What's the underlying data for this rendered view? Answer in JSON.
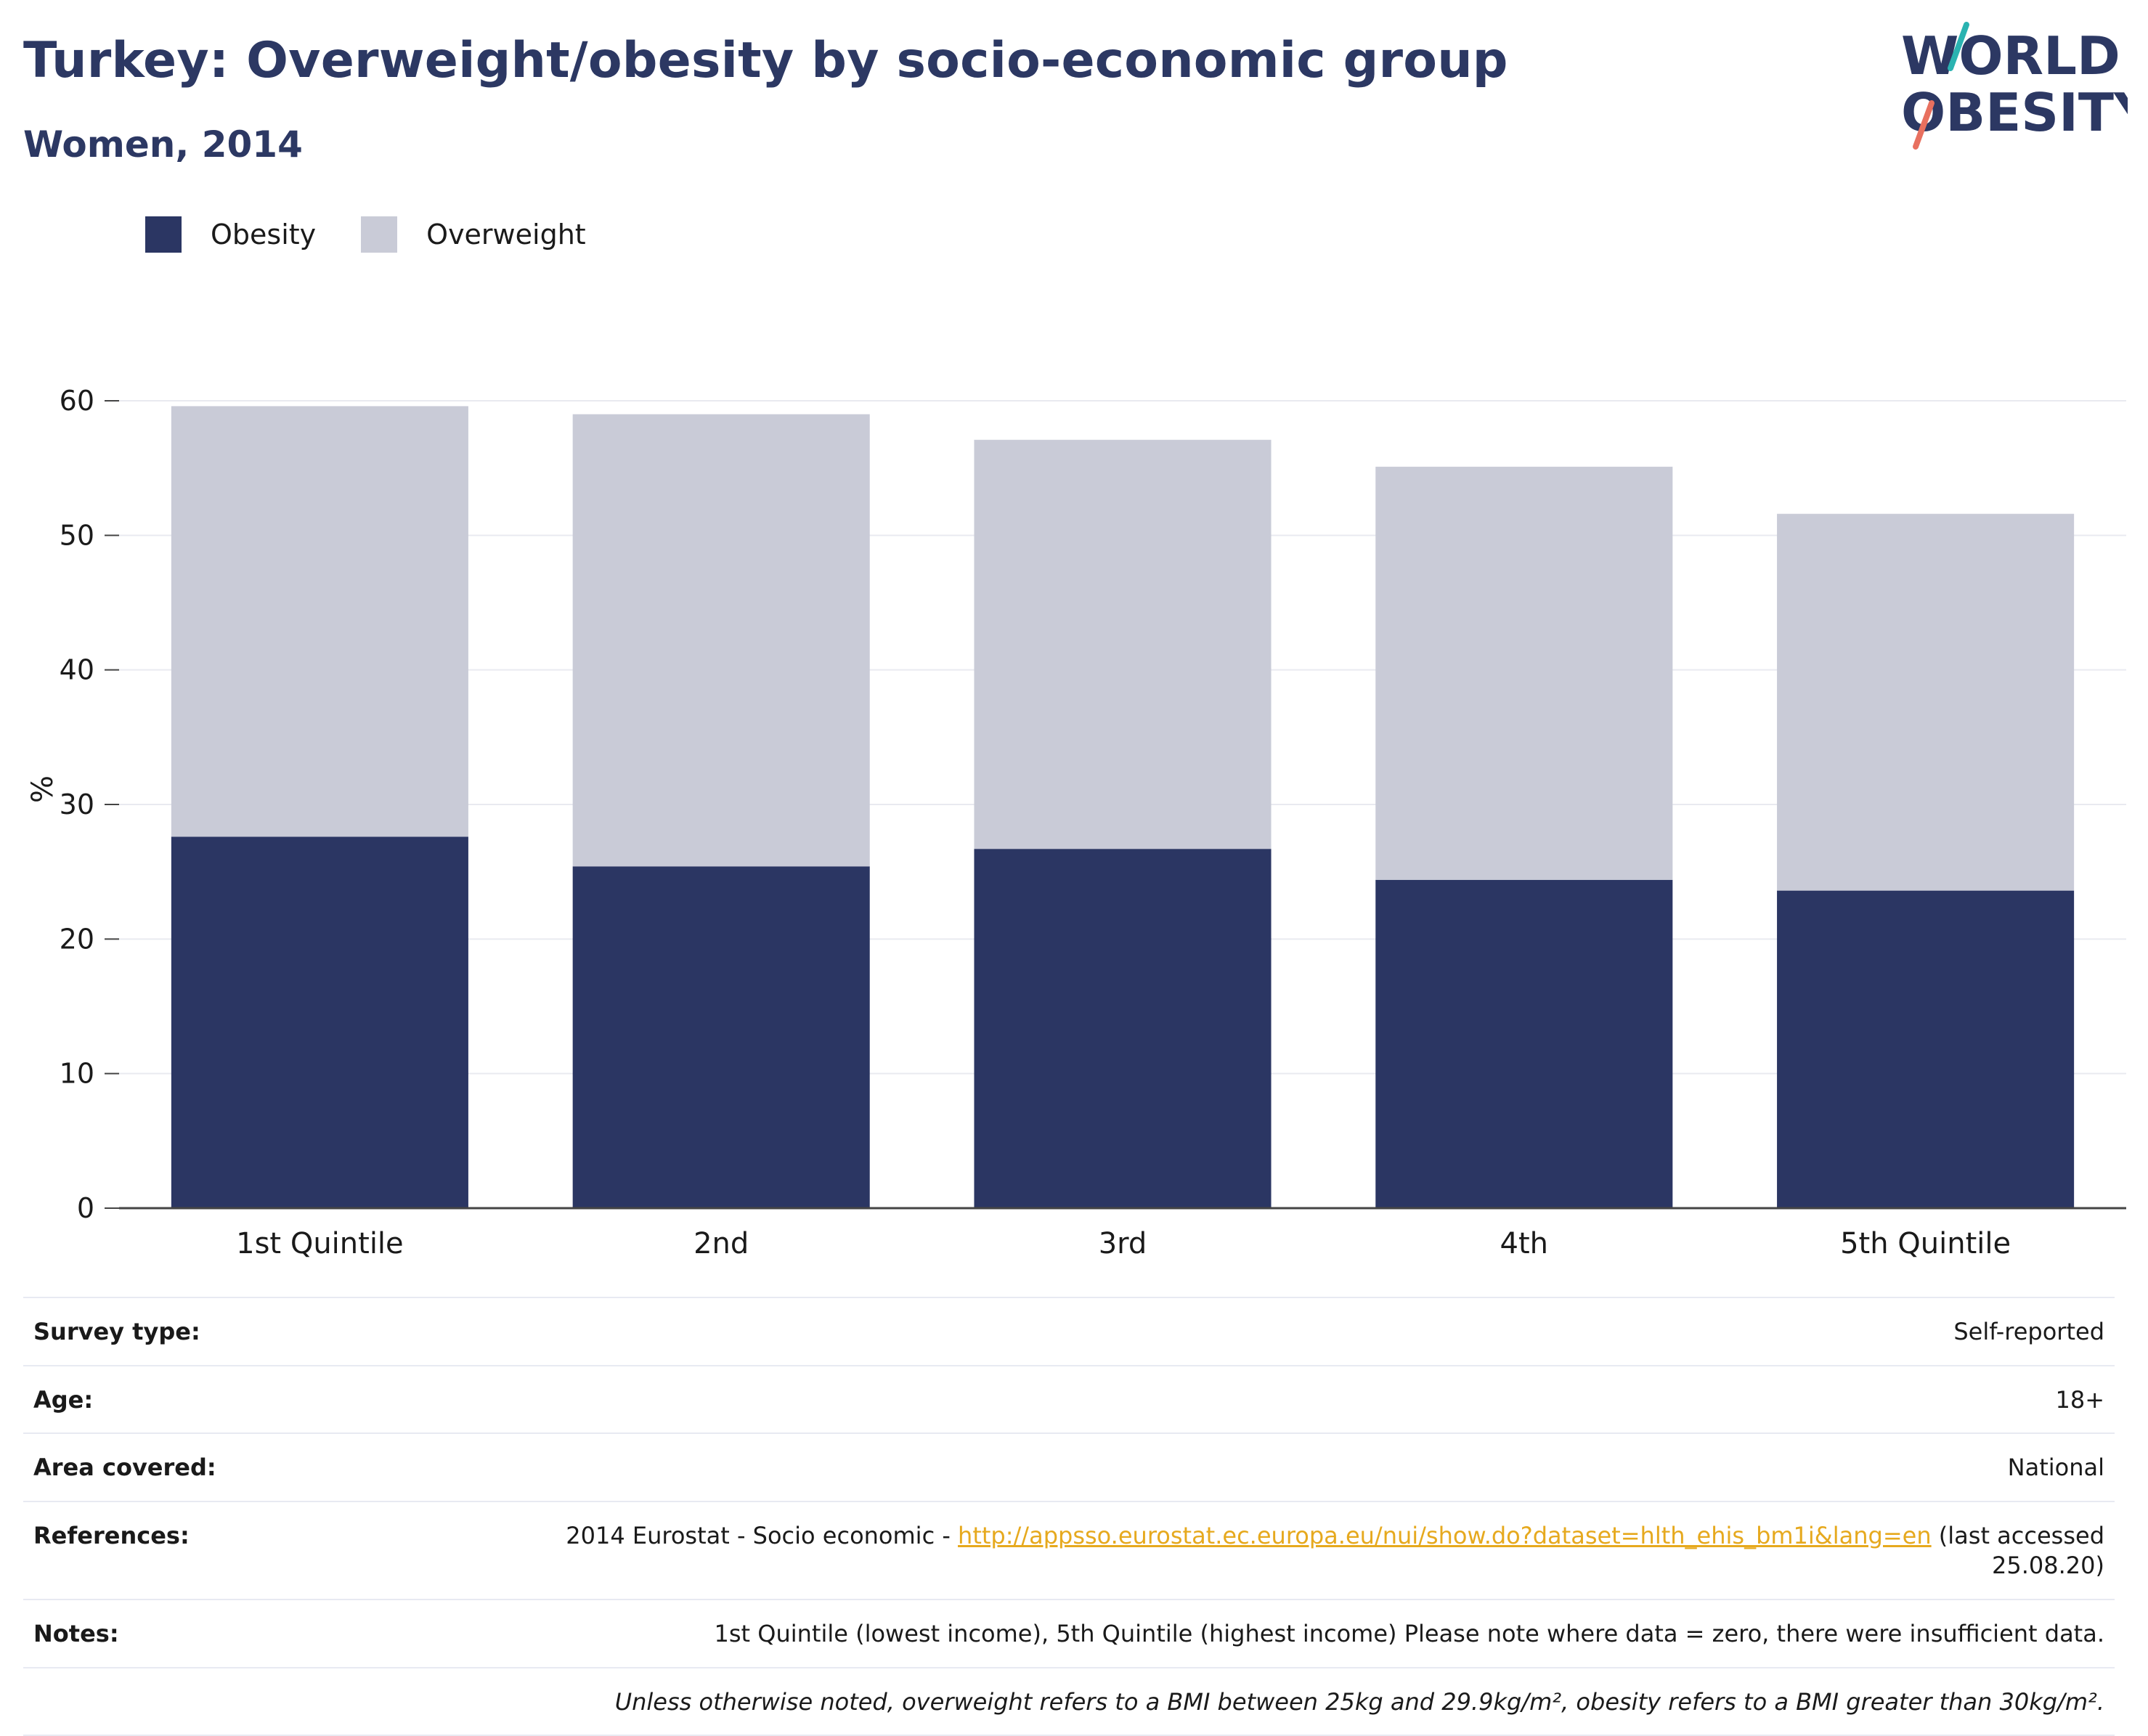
{
  "header": {
    "title": "Turkey: Overweight/obesity by socio-economic group",
    "subtitle": "Women, 2014"
  },
  "logo": {
    "line1": "WORLD",
    "line2": "OBESITY",
    "colors": {
      "text": "#2c3863",
      "slash_teal": "#2ab3b1",
      "slash_coral": "#e8705f"
    }
  },
  "legend": {
    "items": [
      {
        "label": "Obesity",
        "color": "#2b3663"
      },
      {
        "label": "Overweight",
        "color": "#c9cbd7"
      }
    ]
  },
  "chart_data": {
    "type": "bar",
    "stacked": true,
    "categories": [
      "1st Quintile",
      "2nd",
      "3rd",
      "4th",
      "5th Quintile"
    ],
    "series": [
      {
        "name": "Obesity",
        "color": "#2b3663",
        "values": [
          27.6,
          25.4,
          26.7,
          24.4,
          23.6
        ]
      },
      {
        "name": "Overweight",
        "color": "#c9cbd7",
        "values": [
          32.0,
          33.6,
          30.4,
          30.7,
          28.0
        ]
      }
    ],
    "xlabel": "",
    "ylabel": "%",
    "ylim": [
      0,
      60
    ],
    "yticks": [
      0,
      10,
      20,
      30,
      40,
      50,
      60
    ],
    "grid": true,
    "legend_position": "top-left"
  },
  "info": {
    "survey_type": {
      "label": "Survey type:",
      "value": "Self-reported"
    },
    "age": {
      "label": "Age:",
      "value": "18+"
    },
    "area": {
      "label": "Area covered:",
      "value": "National"
    },
    "references": {
      "label": "References:",
      "prefix": "2014 Eurostat - Socio economic - ",
      "link": "http://appsso.eurostat.ec.europa.eu/nui/show.do?dataset=hlth_ehis_bm1i&lang=en",
      "suffix": " (last accessed 25.08.20)"
    },
    "notes": {
      "label": "Notes:",
      "value": "1st Quintile (lowest income), 5th Quintile (highest income) Please note where data = zero, there were insufficient data."
    },
    "definition": "Unless otherwise noted, overweight refers to a BMI between 25kg and 29.9kg/m², obesity refers to a BMI greater than 30kg/m²."
  }
}
